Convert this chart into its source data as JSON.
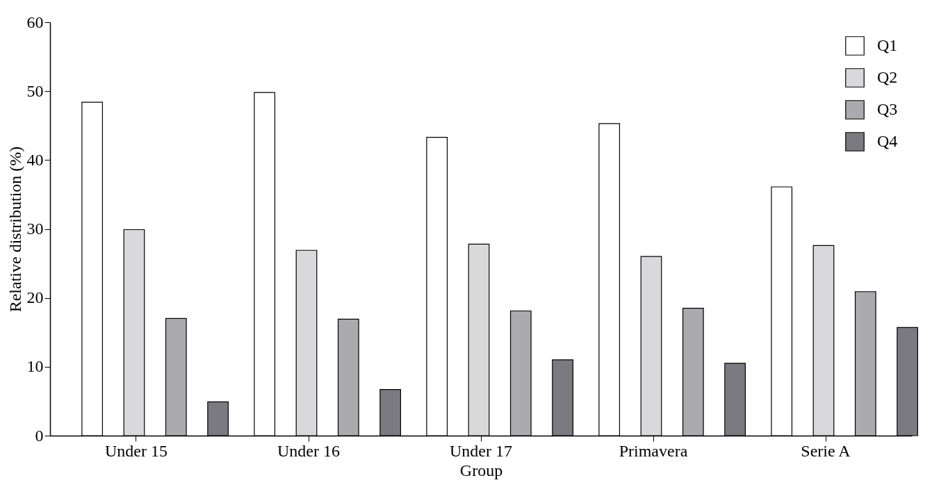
{
  "chart_data": {
    "type": "bar",
    "xlabel": "Group",
    "ylabel": "Relative distribution (%)",
    "categories": [
      "Under 15",
      "Under 16",
      "Under 17",
      "Primavera",
      "Serie A"
    ],
    "series": [
      {
        "name": "Q1",
        "color": "#ffffff",
        "values": [
          48.4,
          49.8,
          43.3,
          45.3,
          36.1
        ]
      },
      {
        "name": "Q2",
        "color": "#d9d9db",
        "values": [
          29.9,
          26.9,
          27.8,
          26.0,
          27.6
        ]
      },
      {
        "name": "Q3",
        "color": "#aaaaaf",
        "values": [
          17.0,
          16.9,
          18.1,
          18.5,
          20.9
        ]
      },
      {
        "name": "Q4",
        "color": "#7a7a80",
        "values": [
          4.9,
          6.7,
          11.0,
          10.5,
          15.7
        ]
      }
    ],
    "ylim": [
      0,
      60
    ],
    "yticks": [
      0,
      10,
      20,
      30,
      40,
      50,
      60
    ],
    "grid": false,
    "legend": "top right"
  }
}
